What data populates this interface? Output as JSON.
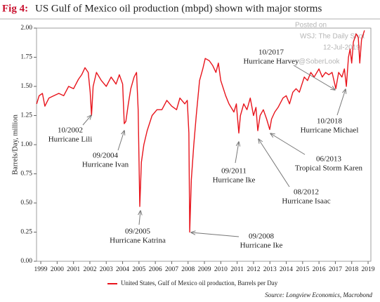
{
  "chart_data": {
    "type": "line",
    "figure_label": "Fig 4:",
    "title": "US Gulf of Mexico oil production (mbpd) shown with major storms",
    "y_axis_label": "Barrels/Day, million",
    "source": "Source: Longview Economics, Macrobond",
    "watermark": [
      "Posted on",
      "WSJ: The Daily Shot",
      "12-Jul-2019",
      "@SoberLook"
    ],
    "x": [
      1999.25,
      1999.4,
      1999.6,
      1999.75,
      2000.0,
      2000.3,
      2000.6,
      2000.9,
      2001.2,
      2001.5,
      2001.8,
      2002.0,
      2002.2,
      2002.4,
      2002.52,
      2002.6,
      2002.7,
      2002.9,
      2003.2,
      2003.5,
      2003.8,
      2004.1,
      2004.3,
      2004.5,
      2004.6,
      2004.7,
      2004.85,
      2005.0,
      2005.2,
      2005.35,
      2005.45,
      2005.55,
      2005.65,
      2005.8,
      2006.0,
      2006.3,
      2006.6,
      2006.9,
      2007.2,
      2007.5,
      2007.8,
      2008.0,
      2008.3,
      2008.45,
      2008.55,
      2008.6,
      2008.7,
      2008.85,
      2009.0,
      2009.2,
      2009.4,
      2009.55,
      2009.8,
      2010.0,
      2010.2,
      2010.35,
      2010.5,
      2010.8,
      2011.0,
      2011.3,
      2011.45,
      2011.6,
      2011.7,
      2011.9,
      2012.1,
      2012.3,
      2012.5,
      2012.65,
      2012.76,
      2012.9,
      2013.1,
      2013.3,
      2013.49,
      2013.6,
      2013.8,
      2014.0,
      2014.3,
      2014.5,
      2014.7,
      2014.9,
      2015.1,
      2015.3,
      2015.6,
      2015.8,
      2016.0,
      2016.2,
      2016.5,
      2016.7,
      2016.9,
      2017.1,
      2017.3,
      2017.53,
      2017.7,
      2017.9,
      2018.05,
      2018.17,
      2018.3,
      2018.4,
      2018.5,
      2018.6,
      2018.77,
      2018.9,
      2018.99,
      2019.1,
      2019.28
    ],
    "series": [
      {
        "name": "United States, Gulf of Mexico oil production, Barrels per Day",
        "color": "#e8141c",
        "values": [
          1.35,
          1.42,
          1.44,
          1.33,
          1.4,
          1.42,
          1.44,
          1.42,
          1.5,
          1.48,
          1.56,
          1.6,
          1.66,
          1.62,
          1.45,
          1.25,
          1.5,
          1.62,
          1.55,
          1.5,
          1.58,
          1.52,
          1.6,
          1.52,
          1.18,
          1.2,
          1.35,
          1.48,
          1.58,
          1.62,
          1.3,
          0.47,
          0.85,
          1.0,
          1.12,
          1.25,
          1.3,
          1.3,
          1.38,
          1.33,
          1.3,
          1.4,
          1.35,
          1.38,
          1.1,
          0.25,
          0.7,
          1.0,
          1.25,
          1.55,
          1.65,
          1.74,
          1.72,
          1.68,
          1.62,
          1.7,
          1.55,
          1.42,
          1.35,
          1.28,
          1.35,
          1.1,
          1.25,
          1.35,
          1.3,
          1.4,
          1.25,
          1.32,
          1.12,
          1.25,
          1.3,
          1.22,
          1.13,
          1.22,
          1.28,
          1.32,
          1.4,
          1.42,
          1.35,
          1.45,
          1.48,
          1.45,
          1.58,
          1.55,
          1.62,
          1.58,
          1.65,
          1.58,
          1.62,
          1.6,
          1.62,
          1.48,
          1.62,
          1.58,
          1.65,
          1.5,
          1.75,
          1.82,
          1.7,
          1.88,
          1.95,
          1.92,
          1.7,
          1.9,
          1.98
        ]
      }
    ],
    "xlim": [
      1999.24,
      2019.67
    ],
    "ylim": [
      0,
      2
    ],
    "yticks": [
      {
        "value": 0,
        "label": "0.00"
      },
      0.25,
      {
        "value": 0.5,
        "label": "0.50"
      },
      0.75,
      {
        "value": 1,
        "label": "1.00"
      },
      1.25,
      {
        "value": 1.5,
        "label": "1.50"
      },
      1.75,
      {
        "value": 2,
        "label": "2.00"
      }
    ],
    "xticks": [
      {
        "value": 1999.5,
        "label": "1999"
      },
      {
        "value": 2000.5,
        "label": "2000"
      },
      {
        "value": 2001.5,
        "label": "2001"
      },
      {
        "value": 2002.5,
        "label": "2002"
      },
      {
        "value": 2003.5,
        "label": "2003"
      },
      {
        "value": 2004.5,
        "label": "2004"
      },
      {
        "value": 2005.5,
        "label": "2005"
      },
      {
        "value": 2006.5,
        "label": "2006"
      },
      {
        "value": 2007.5,
        "label": "2007"
      },
      {
        "value": 2008.5,
        "label": "2008"
      },
      {
        "value": 2009.5,
        "label": "2009"
      },
      {
        "value": 2010.5,
        "label": "2010"
      },
      {
        "value": 2011.5,
        "label": "2011"
      },
      {
        "value": 2012.5,
        "label": "2012"
      },
      {
        "value": 2013.5,
        "label": "2013"
      },
      {
        "value": 2014.5,
        "label": "2014"
      },
      {
        "value": 2015.5,
        "label": "2015"
      },
      {
        "value": 2016.5,
        "label": "2016"
      },
      {
        "value": 2017.5,
        "label": "2017"
      },
      {
        "value": 2018.5,
        "label": "2018"
      },
      {
        "value": 2019.5,
        "label": "2019"
      }
    ],
    "grid": false,
    "annotations": [
      {
        "date": "10/2002",
        "name": "Hurricane Lili"
      },
      {
        "date": "09/2004",
        "name": "Hurricane Ivan"
      },
      {
        "date": "09/2005",
        "name": "Hurricane Katrina"
      },
      {
        "date": "09/2008",
        "name": "Hurricane Ike"
      },
      {
        "date": "09/2011",
        "name": "Hurricane Ike"
      },
      {
        "date": "08/2012",
        "name": "Hurricane Isaac"
      },
      {
        "date": "06/2013",
        "name": "Tropical Storm Karen"
      },
      {
        "date": "10/2017",
        "name": "Hurricane Harvey"
      },
      {
        "date": "10/2018",
        "name": "Hurricane Michael"
      }
    ]
  }
}
